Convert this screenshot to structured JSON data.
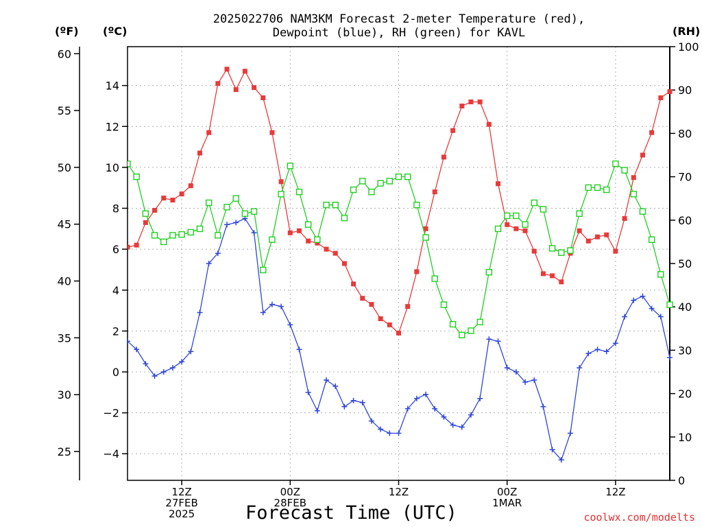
{
  "title": {
    "line1": "2025022706 NAM3KM Forecast 2-meter Temperature (red),",
    "line2": "Dewpoint (blue), RH (green) for KAVL"
  },
  "units": {
    "fahrenheit": "(ºF)",
    "celsius": "(ºC)",
    "rh": "(RH)"
  },
  "xlabel": "Forecast Time (UTC)",
  "credit": "coolwx.com/modelts",
  "colors": {
    "temperature": "#e83a3a",
    "dewpoint": "#2f46d8",
    "rh": "#1fcf1f",
    "grid": "#b0b0b0"
  },
  "chart_data": {
    "type": "line",
    "title": "2025022706 NAM3KM Forecast 2-meter Temperature (red), Dewpoint (blue), RH (green) for KAVL",
    "xlabel": "Forecast Time (UTC)",
    "x_hours": [
      0,
      1,
      2,
      3,
      4,
      5,
      6,
      7,
      8,
      9,
      10,
      11,
      12,
      13,
      14,
      15,
      16,
      17,
      18,
      19,
      20,
      21,
      22,
      23,
      24,
      25,
      26,
      27,
      28,
      29,
      30,
      31,
      32,
      33,
      34,
      35,
      36,
      37,
      38,
      39,
      40,
      41,
      42,
      43,
      44,
      45,
      46,
      47,
      48,
      49,
      50,
      51,
      52,
      53,
      54,
      55,
      56,
      57,
      58,
      59,
      60
    ],
    "x_range": [
      0,
      60
    ],
    "x_ticks": [
      {
        "hour": 6,
        "labels": [
          "12Z",
          "27FEB",
          "2025"
        ]
      },
      {
        "hour": 18,
        "labels": [
          "00Z",
          "28FEB"
        ]
      },
      {
        "hour": 30,
        "labels": [
          "12Z"
        ]
      },
      {
        "hour": 42,
        "labels": [
          "00Z",
          "1MAR"
        ]
      },
      {
        "hour": 54,
        "labels": [
          "12Z"
        ]
      }
    ],
    "celsius_axis": {
      "range": [
        -5.3,
        15.9
      ],
      "ticks": [
        -4,
        -2,
        0,
        2,
        4,
        6,
        8,
        10,
        12,
        14
      ]
    },
    "fahrenheit_axis": {
      "ticks": [
        25,
        30,
        35,
        40,
        45,
        50,
        55,
        60
      ]
    },
    "rh_axis": {
      "range": [
        0,
        100
      ],
      "ticks": [
        0,
        10,
        20,
        30,
        40,
        50,
        60,
        70,
        80,
        90,
        100
      ]
    },
    "grid": true,
    "series": [
      {
        "name": "2-meter Temperature",
        "axis": "celsius",
        "marker": "filled-square",
        "values": [
          6.1,
          6.2,
          7.3,
          7.9,
          8.5,
          8.4,
          8.7,
          9.1,
          10.7,
          11.7,
          14.1,
          14.8,
          13.8,
          14.7,
          13.9,
          13.4,
          11.7,
          9.3,
          6.8,
          6.9,
          6.4,
          6.3,
          6.0,
          5.8,
          5.3,
          4.3,
          3.6,
          3.3,
          2.6,
          2.3,
          1.9,
          3.2,
          4.9,
          7.0,
          8.8,
          10.5,
          11.8,
          13.0,
          13.2,
          13.2,
          12.1,
          9.2,
          7.2,
          7.0,
          6.9,
          5.9,
          4.8,
          4.7,
          4.4,
          5.8,
          6.9,
          6.4,
          6.6,
          6.7,
          5.9,
          7.5,
          9.5,
          10.6,
          11.7,
          13.4,
          13.7
        ]
      },
      {
        "name": "Dewpoint",
        "axis": "celsius",
        "marker": "plus",
        "values": [
          1.5,
          1.1,
          0.4,
          -0.2,
          0.0,
          0.2,
          0.5,
          1.0,
          2.9,
          5.3,
          5.8,
          7.2,
          7.3,
          7.5,
          6.8,
          2.9,
          3.3,
          3.2,
          2.3,
          1.1,
          -1.0,
          -1.9,
          -0.4,
          -0.7,
          -1.7,
          -1.4,
          -1.5,
          -2.4,
          -2.8,
          -3.0,
          -3.0,
          -1.8,
          -1.3,
          -1.1,
          -1.8,
          -2.2,
          -2.6,
          -2.7,
          -2.1,
          -1.3,
          1.6,
          1.5,
          0.2,
          0.0,
          -0.5,
          -0.4,
          -1.7,
          -3.8,
          -4.3,
          -3.0,
          0.2,
          0.9,
          1.1,
          1.0,
          1.4,
          2.7,
          3.5,
          3.7,
          3.1,
          2.7,
          0.7
        ]
      },
      {
        "name": "RH",
        "axis": "rh",
        "marker": "open-square",
        "values": [
          73,
          70,
          61.5,
          56.5,
          55,
          56.5,
          56.7,
          57.2,
          58,
          64,
          56.5,
          63,
          65,
          61.5,
          62,
          48.5,
          55.5,
          66,
          72.5,
          66.5,
          59,
          55.5,
          63.5,
          63.5,
          60.5,
          67,
          69,
          66.5,
          68.5,
          69,
          70,
          70,
          63.5,
          56,
          46.5,
          40.5,
          36,
          33.5,
          34.5,
          36.5,
          48,
          58,
          61,
          61,
          59,
          64,
          62.5,
          53.5,
          52.5,
          53,
          61.5,
          67.5,
          67.5,
          67,
          73,
          71.5,
          66,
          62,
          55.5,
          47.5,
          40.5
        ]
      }
    ]
  }
}
